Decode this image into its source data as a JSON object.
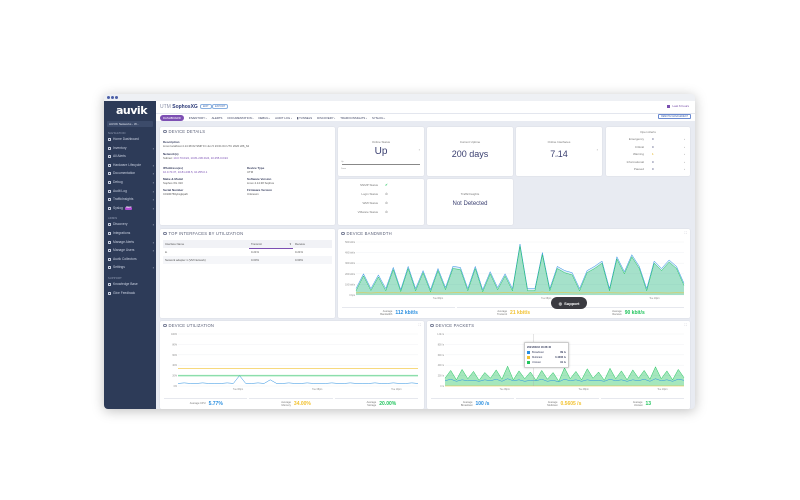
{
  "app": {
    "logo": "auvik",
    "network_selector": "AUVIK Networks - W..."
  },
  "sidebar": {
    "nav_heading": "NAVIGATION",
    "nav": [
      {
        "label": "Home Dashboard",
        "icon": "home-icon"
      },
      {
        "label": "Inventory",
        "icon": "inventory-icon",
        "chevron": true
      },
      {
        "label": "All Alerts",
        "icon": "alert-icon"
      },
      {
        "label": "Hardware Lifecycle",
        "icon": "lifecycle-icon",
        "chevron": true
      },
      {
        "label": "Documentation",
        "icon": "document-icon",
        "chevron": true
      },
      {
        "label": "Debug",
        "icon": "debug-icon",
        "chevron": true
      },
      {
        "label": "Audit Log",
        "icon": "log-icon",
        "chevron": true
      },
      {
        "label": "TrafficInsights",
        "icon": "traffic-icon",
        "chevron": true
      },
      {
        "label": "Syslog",
        "icon": "syslog-icon",
        "badge": "NEW",
        "chevron": true
      }
    ],
    "admin_heading": "ADMIN",
    "admin": [
      {
        "label": "Discovery",
        "icon": "discovery-icon",
        "chevron": true
      },
      {
        "label": "Integrations",
        "icon": "integrations-icon"
      },
      {
        "label": "Manage Alerts",
        "icon": "bell-icon",
        "chevron": true
      },
      {
        "label": "Manage Users",
        "icon": "users-icon",
        "chevron": true
      },
      {
        "label": "Auvik Collectors",
        "icon": "collector-icon"
      },
      {
        "label": "Settings",
        "icon": "gear-icon",
        "chevron": true
      }
    ],
    "support_heading": "SUPPORT",
    "support": [
      {
        "label": "Knowledge Base",
        "icon": "book-icon"
      },
      {
        "label": "Give Feedback",
        "icon": "feedback-icon"
      }
    ]
  },
  "header": {
    "type": "UTM",
    "name": "SophosXG",
    "edit": "EDIT",
    "export": "EXPORT",
    "time_range": "Last 6 hours",
    "remote_management": "REMOTE MANAGEMENT"
  },
  "tabs": [
    "DASHBOARD",
    "INVENTORY ›",
    "ALERTS",
    "DOCUMENTATION ›",
    "DEBUG ›",
    "AUDIT LOG ›",
    "▮ TUNNELS",
    "DISCOVERY ›",
    "TRAFFICINSIGHTS ›",
    "SYSLOG ›"
  ],
  "device_details": {
    "title": "DEVICE DETAILS",
    "description_label": "Description",
    "description": "Linux localhost 4.14.38 #2 SMP Fri Jun 5 23:01:04 UTC 2020 x86_64",
    "networks_label": "Network(s)",
    "networks_prefix": "Subnet: ",
    "networks": "10.0.70.0/24, 10.81.236.0/24, 10.255.0.0/24",
    "ip_label": "IPAddress(es)",
    "ip": "10.0.70.37, 10.81.236.5, 10.255.0.1",
    "device_type_label": "Device Type",
    "device_type": "UTM",
    "make_label": "Make & Model",
    "make": "Sophos XG 310",
    "software_label": "Software Version",
    "software": "Linux 4.14.38 Sophos",
    "serial_label": "Serial Number",
    "serial": "C0100766ykxgkpa6",
    "firmware_label": "Firmware Version",
    "firmware": "Unknown"
  },
  "online_status": {
    "label": "Online Status",
    "value": "Up",
    "up": "Up",
    "down": "Down"
  },
  "uptime": {
    "label": "Current Uptime",
    "value": "200 days"
  },
  "interfaces": {
    "label": "Online Interfaces",
    "online": "7",
    "of": "of",
    "total": "14"
  },
  "open_alerts": {
    "title": "Open Alerts",
    "rows": [
      {
        "label": "Emergency",
        "count": "0"
      },
      {
        "label": "Critical",
        "count": "0"
      },
      {
        "label": "Warning",
        "count": "1"
      },
      {
        "label": "Informational",
        "count": "0"
      },
      {
        "label": "Paused",
        "count": "0"
      }
    ]
  },
  "statuses": [
    {
      "label": "SNMP Status",
      "state": "ok"
    },
    {
      "label": "Login Status",
      "state": "unknown"
    },
    {
      "label": "WMI Status",
      "state": "unknown"
    },
    {
      "label": "VMware Status",
      "state": "unknown"
    }
  ],
  "traffic_insights": {
    "label": "TrafficInsights",
    "value": "Not Detected"
  },
  "top_interfaces": {
    "title": "TOP INTERFACES BY UTILIZATION",
    "columns": [
      "Interface Name",
      "Transmit",
      "Receive"
    ],
    "rows": [
      [
        "lo",
        "0.21%",
        "0.21%"
      ],
      [
        "Network adapter 1 (VM Network)",
        "0.00%",
        "0.69%"
      ]
    ]
  },
  "colors": {
    "accent": "#7d4fb3",
    "blue": "#2a8fe0",
    "green": "#22c55e",
    "yellow": "#f2c230",
    "sidebar": "#2d3b58"
  },
  "chart_data": [
    {
      "type": "area",
      "title": "DEVICE BANDWIDTH",
      "yticks": [
        "0 bps",
        "100 kbit/s",
        "200 kbit/s",
        "300 kbit/s",
        "400 kbit/s",
        "500 kbit/s"
      ],
      "ylim": [
        0,
        500
      ],
      "xticks": [
        "Tue 06pm",
        "Tue 08pm",
        "Tue 10pm"
      ],
      "series": [
        {
          "name": "Bandwidth",
          "color": "#2a8fe0",
          "values": [
            60,
            200,
            60,
            190,
            60,
            260,
            50,
            270,
            60,
            230,
            50,
            250,
            70,
            270,
            260,
            60,
            270,
            50,
            220,
            70,
            200,
            60,
            480,
            60,
            60,
            400,
            60,
            270,
            230,
            210,
            60,
            230,
            270,
            320,
            60,
            360,
            220,
            380,
            270,
            60,
            320,
            250,
            330,
            270,
            110
          ]
        },
        {
          "name": "Receive",
          "color": "#22c55e",
          "values": [
            40,
            180,
            42,
            170,
            40,
            240,
            32,
            250,
            40,
            210,
            30,
            230,
            50,
            250,
            240,
            40,
            250,
            30,
            200,
            50,
            180,
            40,
            460,
            40,
            40,
            380,
            40,
            250,
            210,
            190,
            40,
            210,
            250,
            300,
            40,
            340,
            200,
            360,
            250,
            40,
            300,
            230,
            310,
            250,
            90
          ]
        },
        {
          "name": "Transmit",
          "color": "#f2c230",
          "values": [
            20,
            21,
            19,
            22,
            20,
            21,
            20,
            19,
            22,
            20,
            21,
            20,
            19,
            21,
            22,
            20,
            20,
            21,
            19,
            20,
            22,
            21,
            20,
            19,
            21,
            28,
            20,
            21,
            22,
            20,
            19,
            21,
            20,
            22,
            21,
            20,
            19,
            21,
            22,
            20,
            21,
            20,
            19,
            21,
            20
          ]
        }
      ],
      "stats": [
        {
          "label": "Average Bandwidth",
          "value": "112 kbit/s",
          "color": "#2a8fe0"
        },
        {
          "label": "Average Transmit",
          "value": "21 kbit/s",
          "color": "#f2c230"
        },
        {
          "label": "Average Receive",
          "value": "90 kbit/s",
          "color": "#22c55e"
        }
      ]
    },
    {
      "type": "line",
      "title": "DEVICE UTILIZATION",
      "yticks": [
        "0%",
        "20%",
        "40%",
        "60%",
        "80%",
        "100%"
      ],
      "ylim": [
        0,
        100
      ],
      "xticks": [
        "Tue 06pm",
        "Tue 08pm",
        "Tue 10pm"
      ],
      "series": [
        {
          "name": "CPU",
          "color": "#2a8fe0",
          "values": [
            5,
            6,
            5,
            5,
            6,
            5,
            5,
            5,
            6,
            5,
            20,
            5,
            5,
            6,
            5,
            12,
            5,
            5,
            6,
            5,
            5,
            6,
            5,
            5,
            5,
            6,
            5,
            5,
            6,
            5,
            5,
            5,
            6,
            5,
            5,
            6,
            5,
            5,
            6,
            5
          ]
        },
        {
          "name": "Memory",
          "color": "#f2c230",
          "values": [
            34,
            34,
            34,
            34,
            34,
            34,
            34,
            34,
            34,
            34,
            34,
            34,
            34,
            34,
            34,
            34,
            34,
            34,
            34,
            34,
            34,
            34,
            34,
            34,
            34,
            34,
            34,
            34,
            34,
            34,
            34,
            34,
            34,
            34,
            34,
            34,
            34,
            34,
            34,
            34
          ]
        },
        {
          "name": "Storage",
          "color": "#22c55e",
          "values": [
            20,
            20,
            20,
            20,
            20,
            20,
            20,
            20,
            20,
            20,
            20,
            20,
            20,
            20,
            20,
            20,
            20,
            20,
            20,
            20,
            20,
            20,
            20,
            20,
            20,
            20,
            20,
            20,
            20,
            20,
            20,
            20,
            20,
            20,
            20,
            20,
            20,
            20,
            20,
            20
          ]
        }
      ],
      "stats": [
        {
          "label": "Average CPU",
          "value": "5.77%",
          "color": "#2a8fe0"
        },
        {
          "label": "Average Memory",
          "value": "34.00%",
          "color": "#f2c230"
        },
        {
          "label": "Average Storage",
          "value": "20.00%",
          "color": "#22c55e"
        }
      ]
    },
    {
      "type": "area",
      "title": "DEVICE PACKETS",
      "yticks": [
        "0 /s",
        "200 /s",
        "400 /s",
        "600 /s",
        "800 /s",
        "1.0k /s"
      ],
      "ylim": [
        0,
        1000
      ],
      "xticks": [
        "Tue 06pm",
        "Tue 08pm",
        "Tue 10pm"
      ],
      "series": [
        {
          "name": "Unicast",
          "color": "#22c55e",
          "values": [
            150,
            300,
            120,
            320,
            140,
            280,
            110,
            260,
            150,
            310,
            130,
            380,
            120,
            290,
            140,
            270,
            110,
            300,
            130,
            260,
            90,
            350,
            140,
            280,
            120,
            330,
            150,
            270,
            110,
            340,
            140,
            290,
            120,
            310,
            150,
            300,
            130,
            370,
            140,
            290,
            120,
            320,
            160
          ]
        },
        {
          "name": "Broadcast",
          "color": "#2a8fe0",
          "values": [
            100,
            130,
            90,
            120,
            100,
            110,
            90,
            120,
            100,
            130,
            90,
            140,
            100,
            120,
            90,
            110,
            100,
            130,
            90,
            110,
            80,
            130,
            100,
            120,
            90,
            120,
            100,
            110,
            90,
            130,
            100,
            120,
            90,
            120,
            100,
            130,
            90,
            140,
            100,
            120,
            90,
            130,
            110
          ]
        },
        {
          "name": "Multicast",
          "color": "#f2c230",
          "values": [
            0.56,
            0.56,
            0.56,
            0.56,
            0.56,
            0.56,
            0.56,
            0.56,
            0.56,
            0.56,
            0.56,
            0.56,
            0.56,
            0.56,
            0.56,
            0.56,
            0.56,
            0.56,
            0.56,
            0.56,
            0.56,
            0.56,
            0.56,
            0.56,
            0.56,
            0.56,
            0.56,
            0.56,
            0.56,
            0.56,
            0.56,
            0.56,
            0.56,
            0.56,
            0.56,
            0.56,
            0.56,
            0.56,
            0.56,
            0.56,
            0.56,
            0.56,
            0.56
          ]
        }
      ],
      "tooltip": {
        "time": "2021/03/16 18:36:40",
        "rows": [
          {
            "label": "Broadcast",
            "value": "89 /s",
            "color": "#2a8fe0"
          },
          {
            "label": "Multicast",
            "value": "0.4306 /s",
            "color": "#f2c230"
          },
          {
            "label": "Unicast",
            "value": "91 /s",
            "color": "#22c55e"
          }
        ]
      },
      "stats": [
        {
          "label": "Average Broadcast",
          "value": "100 /s",
          "color": "#2a8fe0"
        },
        {
          "label": "Average Multicast",
          "value": "0.5605 /s",
          "color": "#f2c230"
        },
        {
          "label": "Average Unicast",
          "value": "13",
          "color": "#22c55e"
        }
      ]
    }
  ],
  "support_button": "Support"
}
